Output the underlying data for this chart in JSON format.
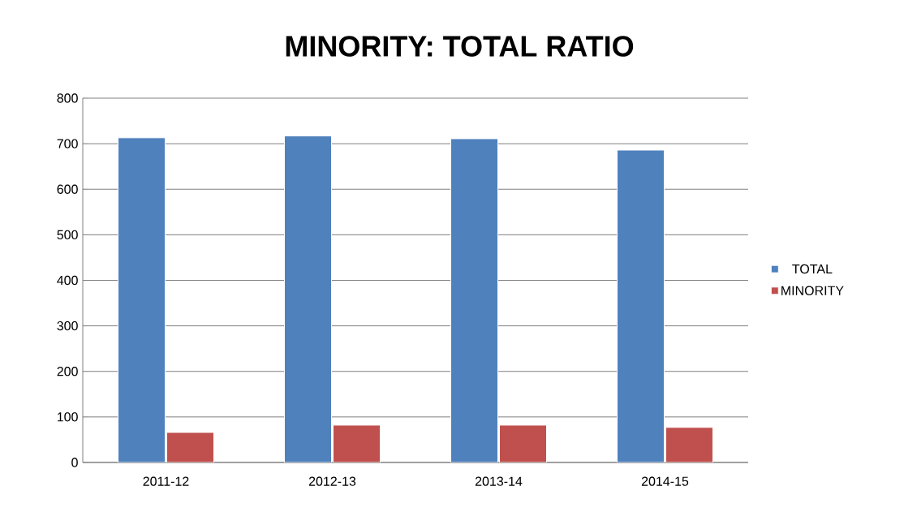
{
  "chart_data": {
    "type": "bar",
    "title": "MINORITY: TOTAL RATIO",
    "categories": [
      "2011-12",
      "2012-13",
      "2013-14",
      "2014-15"
    ],
    "series": [
      {
        "name": "TOTAL",
        "color": "#4f81bd",
        "values": [
          713,
          717,
          711,
          686
        ]
      },
      {
        "name": "MINORITY",
        "color": "#c0504d",
        "values": [
          66,
          82,
          82,
          77
        ]
      }
    ],
    "ylim": [
      0,
      800
    ],
    "yticks": [
      0,
      100,
      200,
      300,
      400,
      500,
      600,
      700,
      800
    ],
    "grid": "y",
    "legend": "right"
  }
}
